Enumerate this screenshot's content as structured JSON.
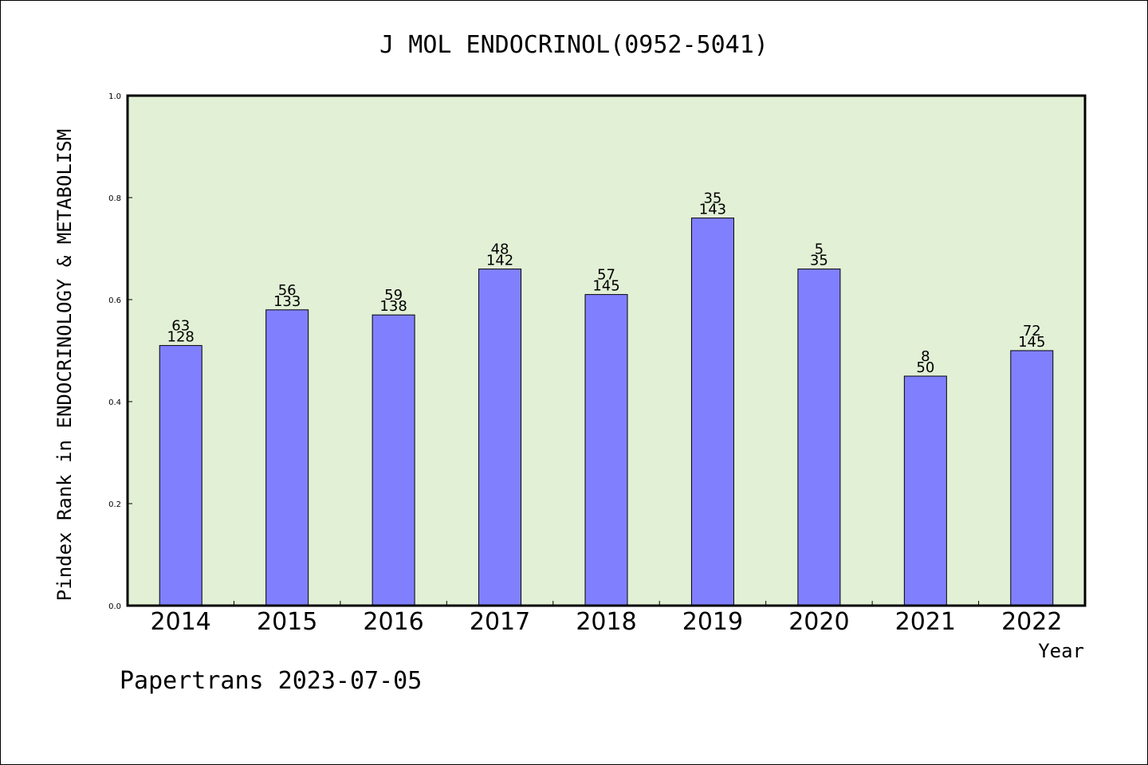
{
  "chart_data": {
    "type": "bar",
    "title": "J MOL ENDOCRINOL(0952-5041)",
    "xlabel": "Year",
    "ylabel": "Pindex Rank in ENDOCRINOLOGY & METABOLISM",
    "ylim": [
      0,
      1.0
    ],
    "yticks": [
      "0.0",
      "0.2",
      "0.4",
      "0.6",
      "0.8",
      "1.0"
    ],
    "categories": [
      "2014",
      "2015",
      "2016",
      "2017",
      "2018",
      "2019",
      "2020",
      "2021",
      "2022"
    ],
    "values": [
      0.51,
      0.58,
      0.57,
      0.66,
      0.61,
      0.76,
      0.66,
      0.45,
      0.5
    ],
    "label_top": [
      "63",
      "56",
      "59",
      "48",
      "57",
      "35",
      "5",
      "8",
      "72"
    ],
    "label_bottom": [
      "128",
      "133",
      "138",
      "142",
      "145",
      "143",
      "35",
      "50",
      "145"
    ],
    "grid": false,
    "colors": {
      "bar": "#8080ff",
      "plot_bg": "#e2f0d6",
      "axis": "#000000"
    }
  },
  "footer": {
    "text": "Papertrans 2023-07-05"
  }
}
